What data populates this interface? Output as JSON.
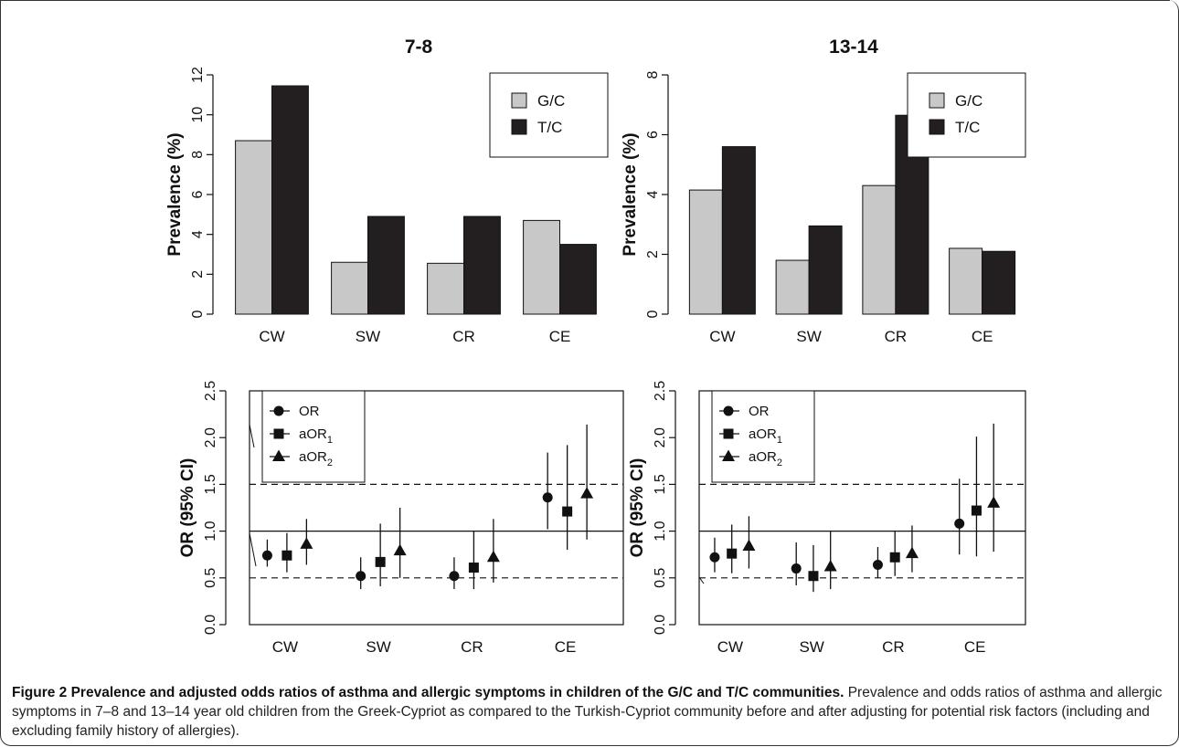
{
  "colors": {
    "gc": "#c8c8c8",
    "tc": "#231f20",
    "axis": "#111111"
  },
  "caption": {
    "label": "Figure 2 Prevalence and adjusted odds ratios of asthma and allergic symptoms in children of the G/C and T/C communities.",
    "text": " Prevalence and odds ratios of asthma and allergic symptoms in 7–8 and 13–14 year old children from the Greek-Cypriot as compared to the Turkish-Cypriot community before and after adjusting for potential risk factors (including and excluding family history of allergies)."
  },
  "chart_data": [
    {
      "id": "bar-7-8",
      "type": "bar",
      "title": "7-8",
      "ylabel": "Prevalence (%)",
      "categories": [
        "CW",
        "SW",
        "CR",
        "CE"
      ],
      "ylim": [
        0,
        12
      ],
      "yticks": [
        "0",
        "2",
        "4",
        "6",
        "8",
        "10",
        "12"
      ],
      "legend": {
        "position": "top-right",
        "entries": [
          "G/C",
          "T/C"
        ]
      },
      "series": [
        {
          "name": "G/C",
          "values": [
            8.7,
            2.6,
            2.55,
            4.7
          ]
        },
        {
          "name": "T/C",
          "values": [
            11.45,
            4.9,
            4.9,
            3.5
          ]
        }
      ]
    },
    {
      "id": "bar-13-14",
      "type": "bar",
      "title": "13-14",
      "ylabel": "Prevalence (%)",
      "categories": [
        "CW",
        "SW",
        "CR",
        "CE"
      ],
      "ylim": [
        0,
        8
      ],
      "yticks": [
        "0",
        "2",
        "4",
        "6",
        "8"
      ],
      "legend": {
        "position": "top-right",
        "entries": [
          "G/C",
          "T/C"
        ]
      },
      "series": [
        {
          "name": "G/C",
          "values": [
            4.15,
            1.8,
            4.3,
            2.2
          ]
        },
        {
          "name": "T/C",
          "values": [
            5.6,
            2.95,
            6.65,
            2.1
          ]
        }
      ]
    },
    {
      "id": "or-7-8",
      "type": "scatter",
      "ylabel": "OR (95% CI)",
      "categories": [
        "CW",
        "SW",
        "CR",
        "CE"
      ],
      "ylim": [
        0,
        2.5
      ],
      "yticks": [
        "0.0",
        "0.5",
        "1.0",
        "1.5",
        "2.0",
        "2.5"
      ],
      "reference_lines": [
        0.5,
        1.0,
        1.5
      ],
      "legend": {
        "position": "top-left",
        "entries": [
          "OR",
          "aOR1",
          "aOR2"
        ]
      },
      "series": [
        {
          "name": "OR",
          "marker": "circle",
          "values": [
            0.74,
            0.52,
            0.52,
            1.36
          ],
          "lower": [
            0.62,
            0.38,
            0.38,
            1.02
          ],
          "upper": [
            0.91,
            0.72,
            0.72,
            1.84
          ]
        },
        {
          "name": "aOR1",
          "marker": "square",
          "values": [
            0.74,
            0.67,
            0.61,
            1.21
          ],
          "lower": [
            0.56,
            0.41,
            0.38,
            0.8
          ],
          "upper": [
            0.98,
            1.08,
            1.0,
            1.92
          ]
        },
        {
          "name": "aOR2",
          "marker": "triangle",
          "values": [
            0.86,
            0.79,
            0.72,
            1.4
          ],
          "lower": [
            0.64,
            0.5,
            0.45,
            0.91
          ],
          "upper": [
            1.13,
            1.25,
            1.13,
            2.14
          ]
        }
      ]
    },
    {
      "id": "or-13-14",
      "type": "scatter",
      "ylabel": "OR (95% CI)",
      "categories": [
        "CW",
        "SW",
        "CR",
        "CE"
      ],
      "ylim": [
        0,
        2.5
      ],
      "yticks": [
        "0.0",
        "0.5",
        "1.0",
        "1.5",
        "2.0",
        "2.5"
      ],
      "reference_lines": [
        0.5,
        1.0,
        1.5
      ],
      "legend": {
        "position": "top-left",
        "entries": [
          "OR",
          "aOR1",
          "aOR2"
        ]
      },
      "series": [
        {
          "name": "OR",
          "marker": "circle",
          "values": [
            0.72,
            0.6,
            0.64,
            1.08
          ],
          "lower": [
            0.56,
            0.42,
            0.5,
            0.75
          ],
          "upper": [
            0.93,
            0.88,
            0.83,
            1.56
          ]
        },
        {
          "name": "aOR1",
          "marker": "square",
          "values": [
            0.76,
            0.52,
            0.72,
            1.22
          ],
          "lower": [
            0.55,
            0.35,
            0.52,
            0.73
          ],
          "upper": [
            1.07,
            0.85,
            1.0,
            2.01
          ]
        },
        {
          "name": "aOR2",
          "marker": "triangle",
          "values": [
            0.84,
            0.62,
            0.76,
            1.3
          ],
          "lower": [
            0.6,
            0.38,
            0.56,
            0.78
          ],
          "upper": [
            1.16,
            1.0,
            1.06,
            2.15
          ]
        }
      ]
    }
  ]
}
